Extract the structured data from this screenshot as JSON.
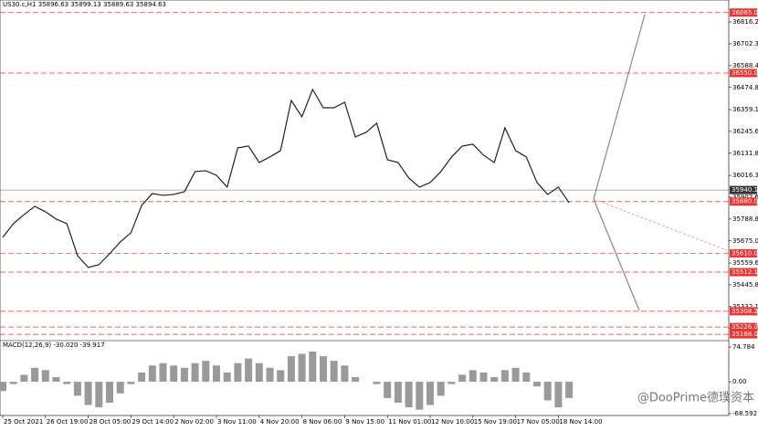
{
  "chart_data": {
    "type": "line",
    "title": "US30.c,H1  35896.63 35899.13 35889.63 35894.63",
    "watermark": "@DooPrime德璞资本",
    "color": "#222222",
    "ylim": [
      35160,
      36883
    ],
    "yticks": [
      {
        "value": 36816.2,
        "label": "36816.20"
      },
      {
        "value": 36702.3,
        "label": "36702.30"
      },
      {
        "value": 36588.4,
        "label": "36588.40"
      },
      {
        "value": 36474.8,
        "label": "36474.80"
      },
      {
        "value": 36359.15,
        "label": "36359.15"
      },
      {
        "value": 36245.6,
        "label": "36245.60"
      },
      {
        "value": 36131.85,
        "label": "36131.85"
      },
      {
        "value": 36016.35,
        "label": "36016.35"
      },
      {
        "value": 35902.65,
        "label": "35902.65"
      },
      {
        "value": 35788.85,
        "label": "35788.85"
      },
      {
        "value": 35675.0,
        "label": "35675.00"
      },
      {
        "value": 35559.6,
        "label": "35559.60"
      },
      {
        "value": 35445.85,
        "label": "35445.85"
      },
      {
        "value": 35332.1,
        "label": "35332.10"
      },
      {
        "value": 35218.59,
        "label": "35218.59"
      }
    ],
    "levels": [
      {
        "value": 36865.0,
        "label": "36865.00"
      },
      {
        "value": 36550.0,
        "label": "36550.00"
      },
      {
        "value": 35880.0,
        "label": "35880.00"
      },
      {
        "value": 35610.0,
        "label": "35610.00"
      },
      {
        "value": 35512.12,
        "label": "35512.12"
      },
      {
        "value": 35308.23,
        "label": "35308.23"
      },
      {
        "value": 35226.0,
        "label": "35226.00"
      },
      {
        "value": 35188.0,
        "label": "35188.00"
      }
    ],
    "current_price": {
      "value": 35940.13,
      "label": "35940.13"
    },
    "categories": [
      "25 Oct 2021",
      null,
      null,
      null,
      "26 Oct 19:00",
      null,
      null,
      null,
      "28 Oct 05:00",
      null,
      null,
      null,
      "29 Oct 14:00",
      null,
      null,
      null,
      "2 Nov 02:00",
      null,
      null,
      null,
      "3 Nov 11:00",
      null,
      null,
      null,
      "4 Nov 20:00",
      null,
      null,
      null,
      "8 Nov 06:00",
      null,
      null,
      null,
      "9 Nov 15:00",
      null,
      null,
      null,
      "11 Nov 01:00",
      null,
      null,
      null,
      "12 Nov 10:00",
      null,
      null,
      null,
      "15 Nov 19:00",
      null,
      null,
      null,
      "17 Nov 05:00",
      null,
      null,
      null,
      "18 Nov 14:00",
      null
    ],
    "values": [
      35693.5,
      35764.9,
      35812.5,
      35855.3,
      35826.7,
      35788.7,
      35764.9,
      35598.4,
      35536.6,
      35550.8,
      35607.9,
      35669.8,
      35717.3,
      35860.0,
      35921.9,
      35912.4,
      35917.1,
      35931.4,
      36036.1,
      36040.8,
      36017.0,
      35955.2,
      36159.7,
      36169.2,
      36083.6,
      36112.2,
      36145.5,
      36407.1,
      36321.5,
      36464.2,
      36369.0,
      36369.0,
      36397.6,
      36216.8,
      36240.6,
      36288.2,
      36097.9,
      36083.6,
      36002.8,
      35955.2,
      35979.0,
      36036.1,
      36112.2,
      36169.2,
      36178.8,
      36121.7,
      36083.6,
      36264.4,
      36145.5,
      36112.2,
      35979.0,
      35917.1,
      35955.2,
      35874.3
    ],
    "macd": {
      "title": "MACD(12,26,9) -30.020 -39.917",
      "color": "#9a9a9a",
      "ylim": [
        -68.592,
        74.784
      ],
      "yticks": [
        {
          "value": 74.784,
          "label": "74.784"
        },
        {
          "value": 0,
          "label": "0.00"
        },
        {
          "value": -68.592,
          "label": "-68.592"
        }
      ],
      "values": [
        -20,
        -5,
        15,
        30,
        25,
        10,
        -5,
        -30,
        -50,
        -55,
        -45,
        -25,
        -5,
        20,
        35,
        40,
        35,
        30,
        40,
        45,
        35,
        20,
        40,
        50,
        40,
        30,
        25,
        55,
        60,
        65,
        55,
        45,
        35,
        10,
        0,
        -5,
        -35,
        -45,
        -55,
        -60,
        -50,
        -30,
        -5,
        15,
        25,
        20,
        10,
        25,
        30,
        20,
        -10,
        -40,
        -55,
        -35
      ]
    }
  }
}
